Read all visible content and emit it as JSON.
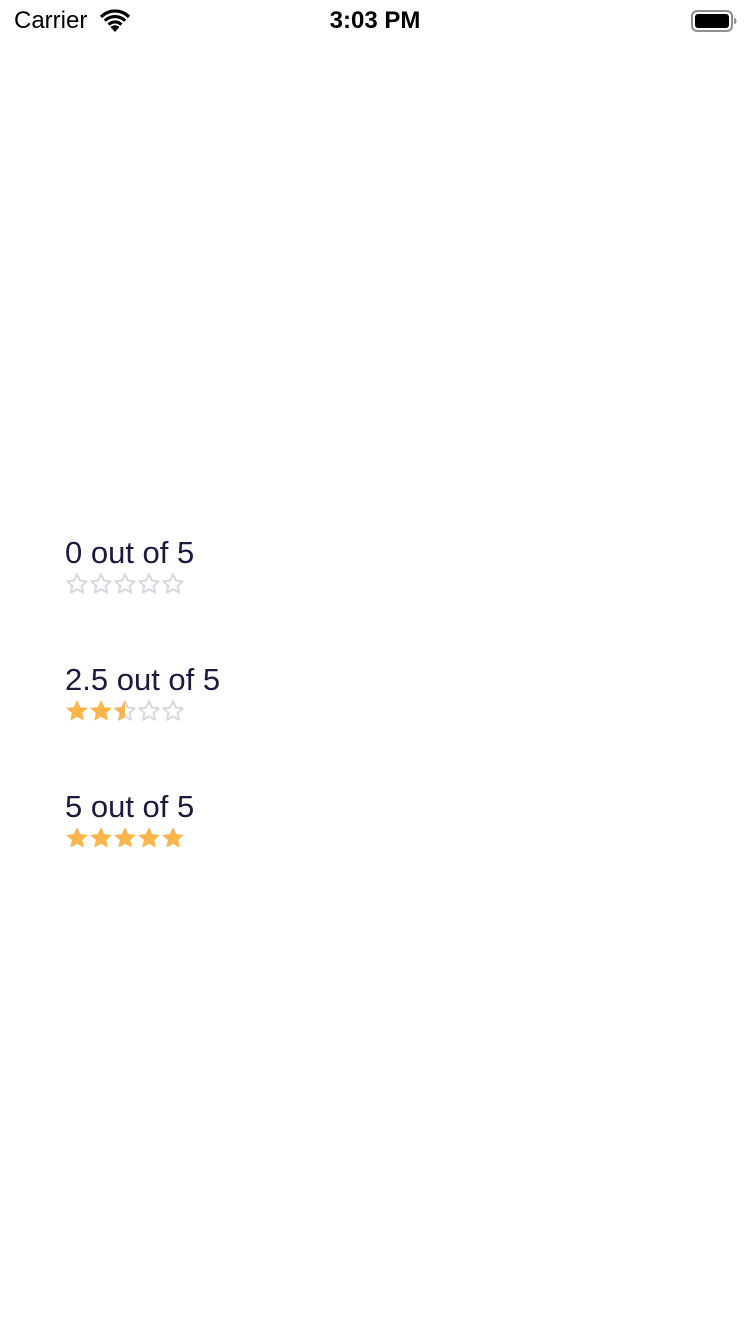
{
  "status_bar": {
    "carrier": "Carrier",
    "time": "3:03 PM",
    "wifi_icon": "wifi-icon",
    "battery_icon": "battery-icon"
  },
  "colors": {
    "star_filled": "#fbb54b",
    "star_empty": "#d8d8e0",
    "label_text": "#1b1a3f"
  },
  "ratings": [
    {
      "label": "0 out of 5",
      "value": 0,
      "max": 5
    },
    {
      "label": "2.5 out of 5",
      "value": 2.5,
      "max": 5
    },
    {
      "label": "5 out of 5",
      "value": 5,
      "max": 5
    }
  ]
}
